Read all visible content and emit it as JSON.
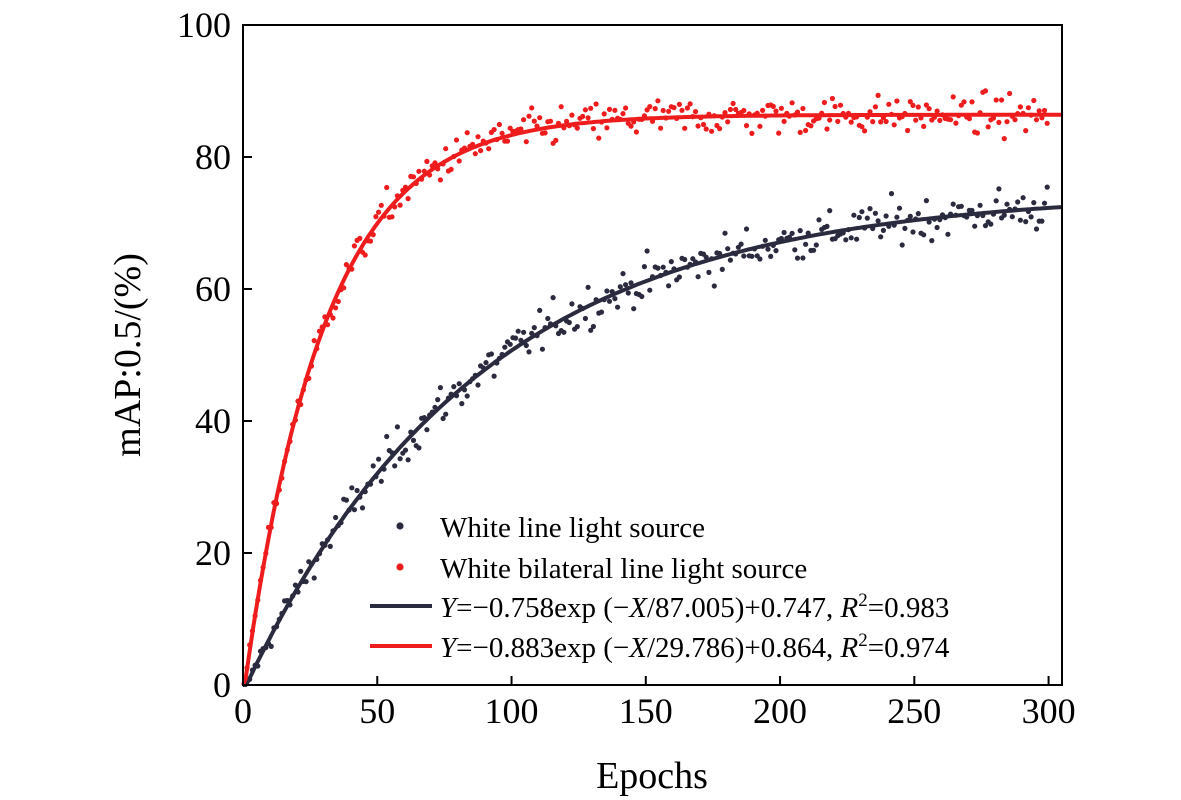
{
  "chart_data": {
    "type": "scatter",
    "xlabel": "Epochs",
    "ylabel": "mAP:0.5/(%)",
    "xlim": [
      0,
      305
    ],
    "ylim": [
      0,
      100
    ],
    "xticks": [
      0,
      50,
      100,
      150,
      200,
      250,
      300
    ],
    "yticks": [
      0,
      20,
      40,
      60,
      80,
      100
    ],
    "x_tick_labels": [
      "0",
      "50",
      "100",
      "150",
      "200",
      "250",
      "300"
    ],
    "y_tick_labels": [
      "0",
      "20",
      "40",
      "60",
      "80",
      "100"
    ],
    "grid": false,
    "legend_position": "bottom-right",
    "series": [
      {
        "name": "White line light source",
        "kind": "scatter",
        "color": "#2b2b3f",
        "x_range": [
          0,
          300
        ],
        "point_count": 300,
        "approx_curve": {
          "a": 75.8,
          "tau": 87.005,
          "c": 74.7
        },
        "noise_sd": 2.3
      },
      {
        "name": "White bilateral line light source",
        "kind": "scatter",
        "color": "#ee1c1c",
        "x_range": [
          0,
          300
        ],
        "point_count": 300,
        "approx_curve": {
          "a": 88.3,
          "tau": 29.786,
          "c": 86.4
        },
        "noise_sd": 2.0
      }
    ],
    "fits": [
      {
        "color": "#2b2b3f",
        "a": 75.8,
        "tau": 87.005,
        "c": 74.7,
        "equation": {
          "y_symbol": "Y",
          "lead": "=−0.758exp (−",
          "x_symbol": "X",
          "tail": "/87.005)+0.747, ",
          "r_symbol": "R",
          "r_sup": "2",
          "r_value": "=0.983"
        }
      },
      {
        "color": "#ee1c1c",
        "a": 88.3,
        "tau": 29.786,
        "c": 86.4,
        "equation": {
          "y_symbol": "Y",
          "lead": "=−0.883exp (−",
          "x_symbol": "X",
          "tail": "/29.786)+0.864, ",
          "r_symbol": "R",
          "r_sup": "2",
          "r_value": "=0.974"
        }
      }
    ]
  }
}
